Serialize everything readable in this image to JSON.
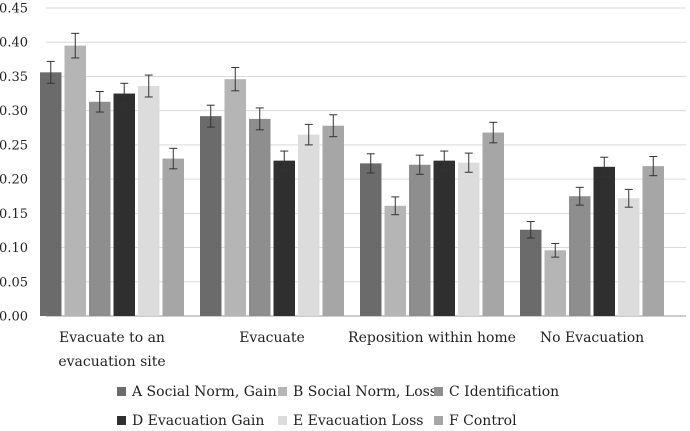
{
  "chart_data": {
    "type": "bar",
    "title": "",
    "xlabel": "",
    "ylabel": "",
    "ylim": [
      0,
      0.45
    ],
    "yticks": [
      "0.00",
      "0.05",
      "0.10",
      "0.15",
      "0.20",
      "0.25",
      "0.30",
      "0.35",
      "0.40",
      "0.45"
    ],
    "grid": true,
    "legend_position": "bottom",
    "categories": [
      {
        "line1": "Evacuate to an",
        "line2": "evacuation site"
      },
      {
        "line1": "Evacuate",
        "line2": ""
      },
      {
        "line1": "Reposition within home",
        "line2": ""
      },
      {
        "line1": "No Evacuation",
        "line2": ""
      }
    ],
    "series": [
      {
        "name": "A Social Norm, Gain",
        "color": "#6b6b6b",
        "values": [
          0.356,
          0.292,
          0.223,
          0.126
        ],
        "errors": [
          0.016,
          0.016,
          0.014,
          0.012
        ]
      },
      {
        "name": "B Social Norm, Loss",
        "color": "#b5b5b5",
        "values": [
          0.395,
          0.346,
          0.161,
          0.096
        ],
        "errors": [
          0.018,
          0.017,
          0.013,
          0.01
        ]
      },
      {
        "name": "C Identification",
        "color": "#8e8e8e",
        "values": [
          0.313,
          0.288,
          0.221,
          0.175
        ],
        "errors": [
          0.015,
          0.016,
          0.014,
          0.013
        ]
      },
      {
        "name": "D Evacuation Gain",
        "color": "#2f2f2f",
        "values": [
          0.325,
          0.227,
          0.227,
          0.218
        ],
        "errors": [
          0.015,
          0.014,
          0.014,
          0.014
        ]
      },
      {
        "name": "E Evacuation Loss",
        "color": "#dcdcdc",
        "values": [
          0.336,
          0.265,
          0.224,
          0.172
        ],
        "errors": [
          0.016,
          0.015,
          0.014,
          0.013
        ]
      },
      {
        "name": "F Control",
        "color": "#a6a6a6",
        "values": [
          0.23,
          0.278,
          0.268,
          0.219
        ],
        "errors": [
          0.015,
          0.016,
          0.015,
          0.014
        ]
      }
    ]
  }
}
